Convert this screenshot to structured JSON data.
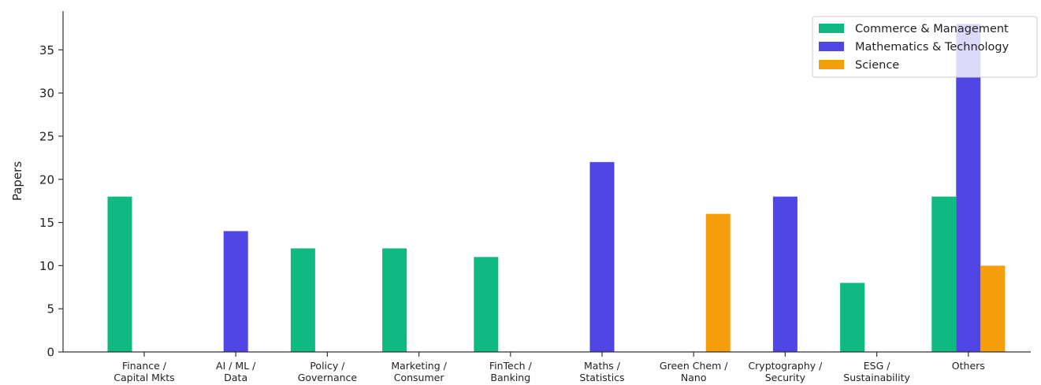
{
  "chart_data": {
    "type": "bar",
    "title": "",
    "xlabel": "",
    "ylabel": "Papers",
    "ylim": [
      0,
      39.5
    ],
    "yticks": [
      0,
      5,
      10,
      15,
      20,
      25,
      30,
      35
    ],
    "categories": [
      [
        "Finance /",
        "Capital Mkts"
      ],
      [
        "AI / ML /",
        "Data"
      ],
      [
        "Policy /",
        "Governance"
      ],
      [
        "Marketing /",
        "Consumer"
      ],
      [
        "FinTech /",
        "Banking"
      ],
      [
        "Maths /",
        "Statistics"
      ],
      [
        "Green Chem /",
        "Nano"
      ],
      [
        "Cryptography /",
        "Security"
      ],
      [
        "ESG /",
        "Sustainability"
      ],
      [
        "Others"
      ]
    ],
    "series": [
      {
        "name": "Commerce & Management",
        "color": "#10b981",
        "values": [
          18,
          0,
          12,
          12,
          11,
          0,
          0,
          0,
          8,
          18
        ]
      },
      {
        "name": "Mathematics & Technology",
        "color": "#4f46e5",
        "values": [
          0,
          14,
          0,
          0,
          0,
          22,
          0,
          18,
          0,
          38
        ]
      },
      {
        "name": "Science",
        "color": "#f59e0b",
        "values": [
          0,
          0,
          0,
          0,
          0,
          0,
          16,
          0,
          0,
          10
        ]
      }
    ],
    "grid": false,
    "legend_position": "top-right"
  }
}
